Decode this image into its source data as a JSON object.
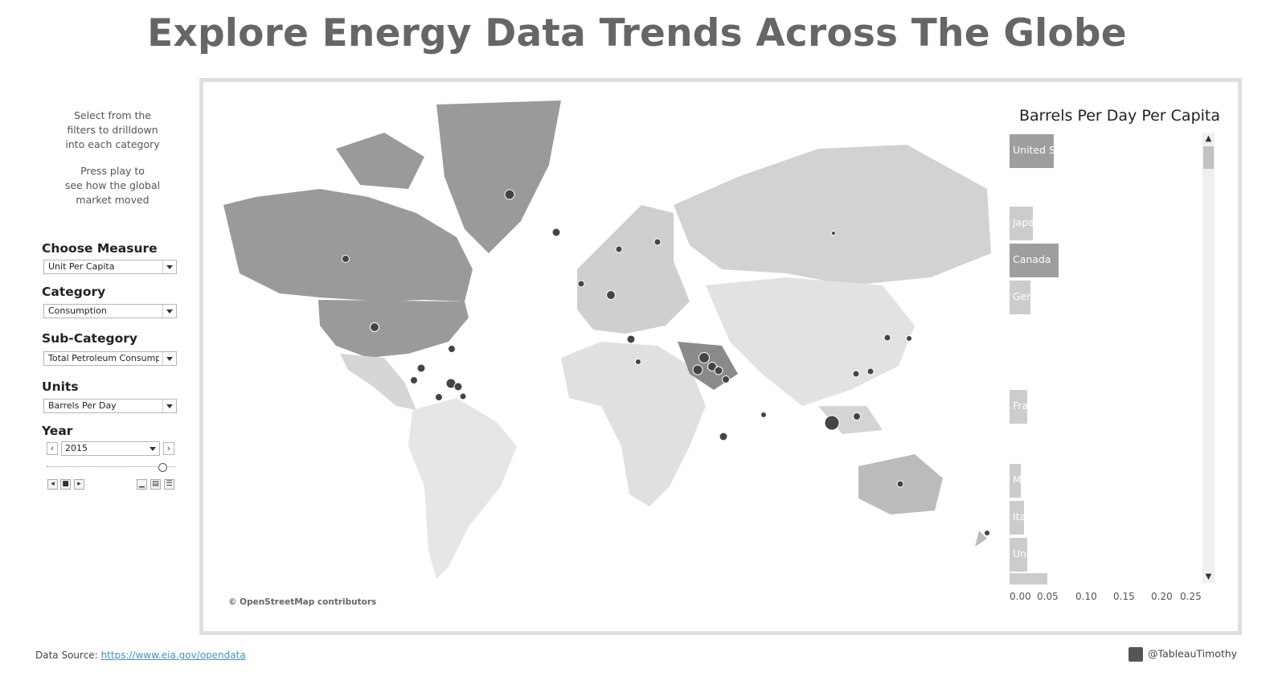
{
  "title": "Explore Energy Data Trends Across The Globe",
  "instructions": {
    "line1": "Select from the",
    "line2": "filters to drilldown",
    "line3": "into each category",
    "line4": "Press play to",
    "line5": "see how the global",
    "line6": "market moved"
  },
  "filters": {
    "measure": {
      "label": "Choose Measure",
      "value": "Unit Per Capita"
    },
    "category": {
      "label": "Category",
      "value": "Consumption"
    },
    "subcategory": {
      "label": "Sub-Category",
      "value": "Total Petroleum Consump..."
    },
    "units": {
      "label": "Units",
      "value": "Barrels Per Day"
    },
    "year": {
      "label": "Year",
      "value": "2015"
    }
  },
  "map": {
    "attribution": "© OpenStreetMap contributors"
  },
  "bar_chart": {
    "title": "Barrels Per Day Per Capita",
    "ticks": [
      "0.00",
      "0.05",
      "0.10",
      "0.15",
      "0.20",
      "0.25"
    ],
    "bars": [
      {
        "label": "United St",
        "value": 0.06,
        "highlight": true
      },
      {
        "label": "Japa",
        "value": 0.031,
        "highlight": false
      },
      {
        "label": "Canada",
        "value": 0.066,
        "highlight": true
      },
      {
        "label": "Ger",
        "value": 0.028,
        "highlight": false
      },
      {
        "label": "Fra",
        "value": 0.024,
        "highlight": false
      },
      {
        "label": "M",
        "value": 0.015,
        "highlight": false
      },
      {
        "label": "Ita",
        "value": 0.02,
        "highlight": false
      },
      {
        "label": "Uni",
        "value": 0.024,
        "highlight": false
      },
      {
        "label": "",
        "value": 0.051,
        "highlight": false
      }
    ]
  },
  "footer": {
    "source_label": "Data Source:",
    "source_url": "https://www.eia.gov/opendata",
    "twitter": "@TableauTimothy"
  },
  "colors": {
    "title": "#666666",
    "bar": "#cccccc",
    "bar_highlight": "#9e9e9e",
    "link": "#4a90b8"
  }
}
